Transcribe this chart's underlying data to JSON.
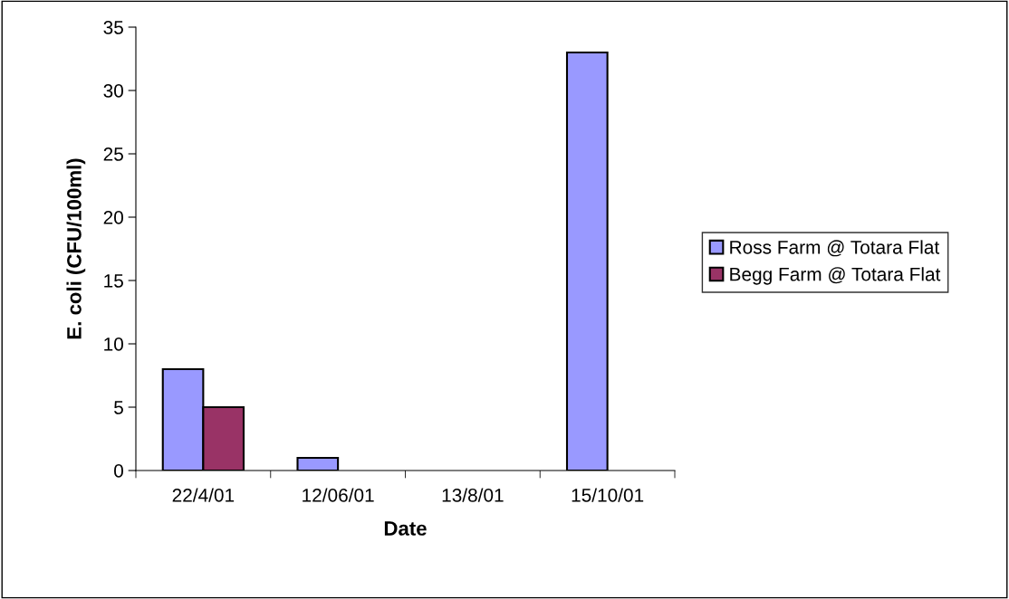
{
  "chart_data": {
    "type": "bar",
    "xlabel": "Date",
    "ylabel": "E. coli (CFU/100ml)",
    "categories": [
      "22/4/01",
      "12/06/01",
      "13/8/01",
      "15/10/01"
    ],
    "series": [
      {
        "name": "Ross Farm @ Totara Flat",
        "color": "#9999ff",
        "values": [
          8,
          1,
          null,
          33
        ]
      },
      {
        "name": "Begg Farm @ Totara Flat",
        "color": "#993366",
        "values": [
          5,
          null,
          null,
          null
        ]
      }
    ],
    "ylim": [
      0,
      35
    ],
    "yticks": [
      0,
      5,
      10,
      15,
      20,
      25,
      30,
      35
    ],
    "grid": false,
    "legend": "right"
  }
}
